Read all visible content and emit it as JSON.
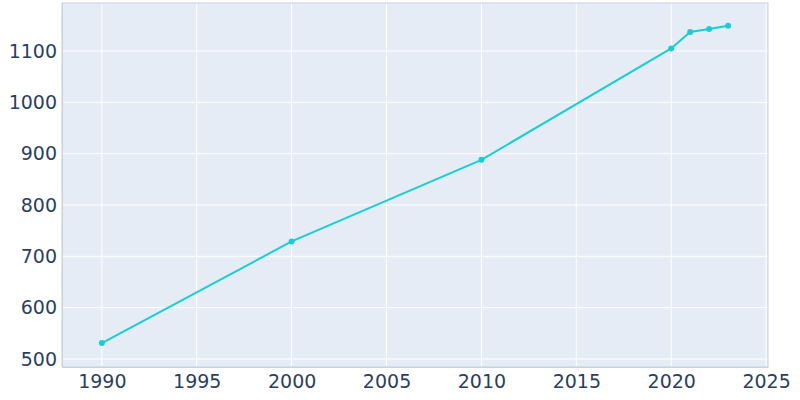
{
  "chart_data": {
    "type": "line",
    "x": [
      1990,
      2000,
      2010,
      2020,
      2021,
      2022,
      2023
    ],
    "values": [
      531,
      729,
      888,
      1105,
      1137,
      1143,
      1149
    ],
    "color": "#17cfd2",
    "marker": "circle",
    "line_style": "solid",
    "xlim": [
      1987.9,
      2025.1
    ],
    "xticks": [
      1990,
      1995,
      2000,
      2005,
      2010,
      2015,
      2020,
      2025
    ],
    "ylim": [
      484.4,
      1193.5
    ],
    "yticks": [
      500,
      600,
      700,
      800,
      900,
      1000,
      1100
    ],
    "grid": true
  }
}
